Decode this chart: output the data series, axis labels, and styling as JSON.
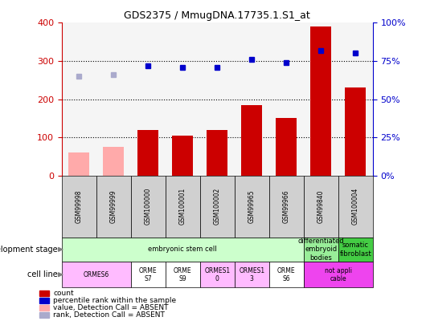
{
  "title": "GDS2375 / MmugDNA.17735.1.S1_at",
  "samples": [
    "GSM99998",
    "GSM99999",
    "GSM100000",
    "GSM100001",
    "GSM100002",
    "GSM99965",
    "GSM99966",
    "GSM99840",
    "GSM100004"
  ],
  "count_values": [
    60,
    75,
    120,
    105,
    120,
    185,
    150,
    390,
    230
  ],
  "count_absent": [
    true,
    true,
    false,
    false,
    false,
    false,
    false,
    false,
    false
  ],
  "percentile_values": [
    65,
    66,
    72,
    71,
    71,
    76,
    74,
    82,
    80
  ],
  "percentile_absent": [
    true,
    true,
    false,
    false,
    false,
    false,
    false,
    false,
    false
  ],
  "count_color": "#cc0000",
  "count_absent_color": "#ffaaaa",
  "percentile_color": "#0000cc",
  "percentile_absent_color": "#aaaacc",
  "ylim_left": [
    0,
    400
  ],
  "ylim_right": [
    0,
    100
  ],
  "yticks_left": [
    0,
    100,
    200,
    300,
    400
  ],
  "yticks_right": [
    0,
    25,
    50,
    75,
    100
  ],
  "yticklabels_right": [
    "0%",
    "25%",
    "50%",
    "75%",
    "100%"
  ],
  "bar_width": 0.6,
  "background_color": "#ffffff",
  "dotted_lines": [
    100,
    200,
    300
  ],
  "chart_bg": "#f5f5f5",
  "dev_layout": [
    {
      "start": 0,
      "end": 6,
      "label": "embryonic stem cell",
      "color": "#ccffcc"
    },
    {
      "start": 7,
      "end": 7,
      "label": "differentiated\nembryoid\nbodies",
      "color": "#99ee99"
    },
    {
      "start": 8,
      "end": 8,
      "label": "somatic\nfibroblast",
      "color": "#44cc44"
    }
  ],
  "cell_layout": [
    {
      "start": 0,
      "end": 1,
      "label": "ORMES6",
      "color": "#ffbbff"
    },
    {
      "start": 2,
      "end": 2,
      "label": "ORME\nS7",
      "color": "#ffffff"
    },
    {
      "start": 3,
      "end": 3,
      "label": "ORME\nS9",
      "color": "#ffffff"
    },
    {
      "start": 4,
      "end": 4,
      "label": "ORMES1\n0",
      "color": "#ffbbff"
    },
    {
      "start": 5,
      "end": 5,
      "label": "ORMES1\n3",
      "color": "#ffbbff"
    },
    {
      "start": 6,
      "end": 6,
      "label": "ORME\nS6",
      "color": "#ffffff"
    },
    {
      "start": 7,
      "end": 8,
      "label": "not appli\ncable",
      "color": "#ee44ee"
    }
  ],
  "legend_items": [
    {
      "color": "#cc0000",
      "label": "count"
    },
    {
      "color": "#0000cc",
      "label": "percentile rank within the sample"
    },
    {
      "color": "#ffaaaa",
      "label": "value, Detection Call = ABSENT"
    },
    {
      "color": "#aaaacc",
      "label": "rank, Detection Call = ABSENT"
    }
  ]
}
